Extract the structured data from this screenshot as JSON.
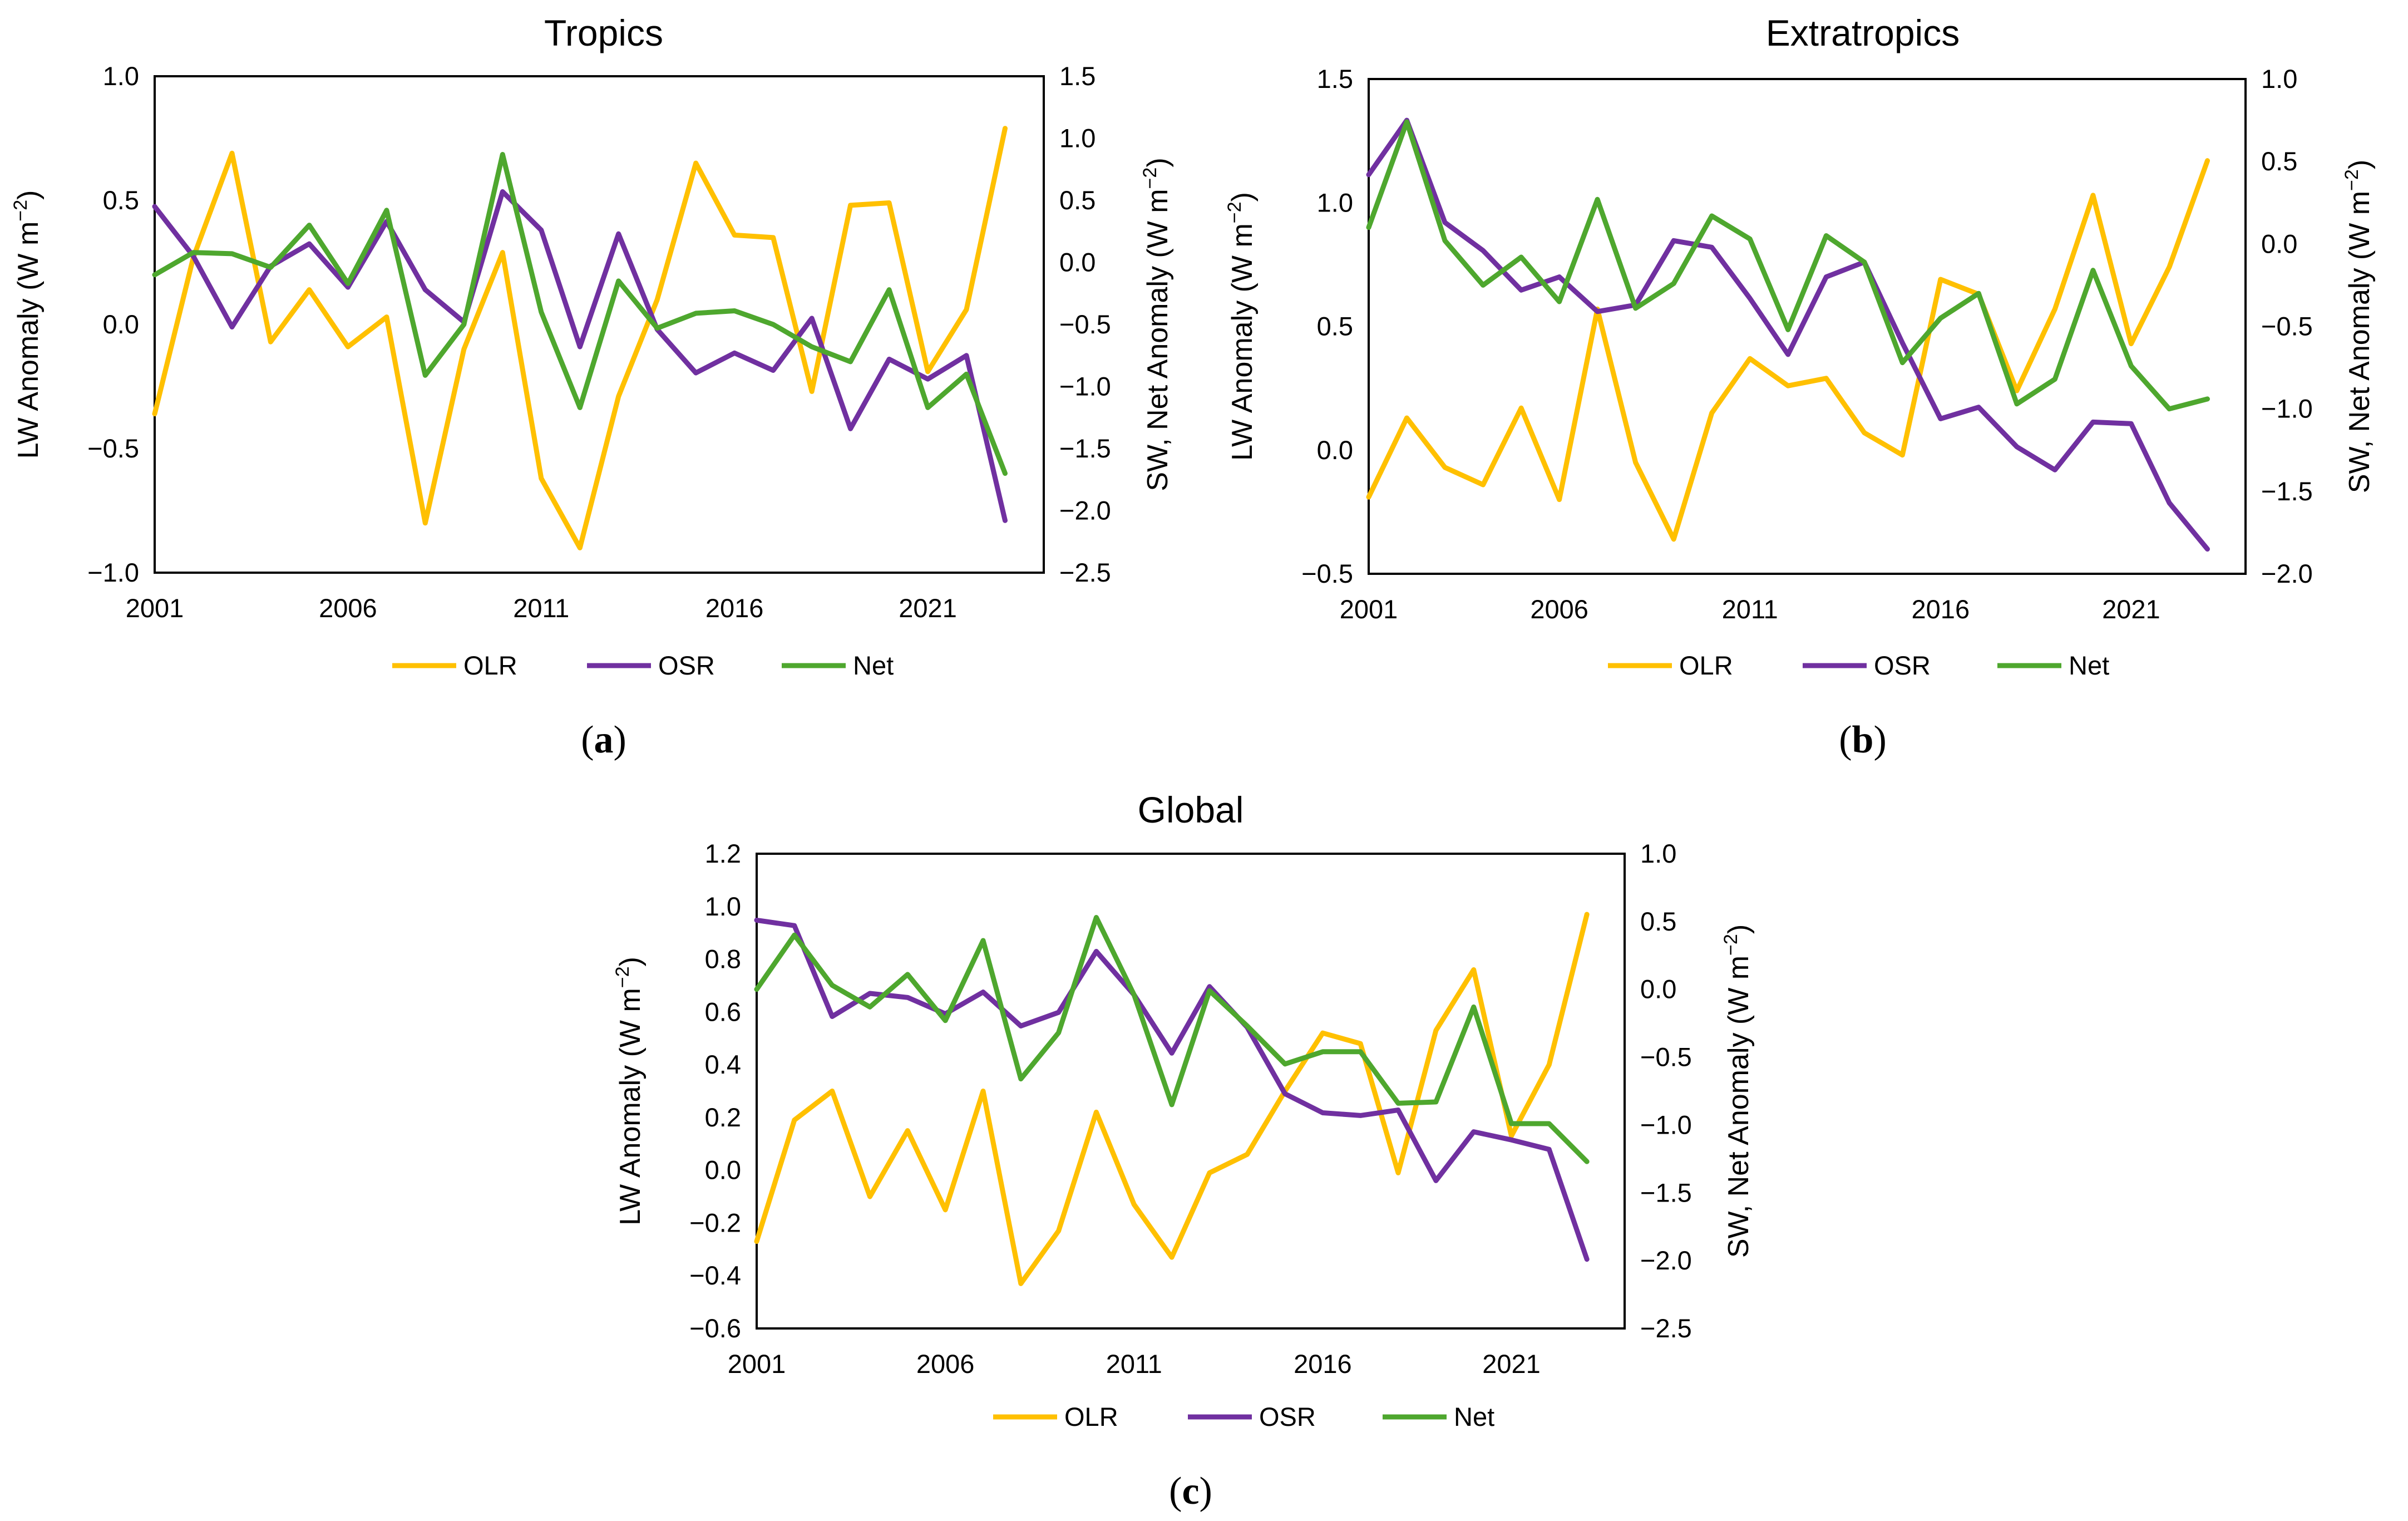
{
  "colors": {
    "OLR": "#FFC000",
    "OSR": "#7030A0",
    "Net": "#4EA72E"
  },
  "chart_data": [
    {
      "type": "line",
      "title": "Tropics",
      "caption_letter": "a",
      "ylabel_left": "LW Anomaly (W m",
      "ylabel_right": "SW, Net Anomaly (W m",
      "ylabel_sup": "−2",
      "ylabel_close": ")",
      "x": [
        2001,
        2002,
        2003,
        2004,
        2005,
        2006,
        2007,
        2008,
        2009,
        2010,
        2011,
        2012,
        2013,
        2014,
        2015,
        2016,
        2017,
        2018,
        2019,
        2020,
        2021,
        2022,
        2023
      ],
      "xticks": [
        "2001",
        "2006",
        "2011",
        "2016",
        "2021"
      ],
      "xlim": [
        2001,
        2024
      ],
      "ylim_left": [
        -1.0,
        1.0
      ],
      "yticks_left": [
        "−1.0",
        "−0.5",
        "0.0",
        "0.5",
        "1.0"
      ],
      "ylim_right": [
        -2.5,
        1.5
      ],
      "yticks_right": [
        "−2.5",
        "−2.0",
        "−1.5",
        "−1.0",
        "−0.5",
        "0.0",
        "0.5",
        "1.0",
        "1.5"
      ],
      "legend": [
        "OLR",
        "OSR",
        "Net"
      ],
      "series": [
        {
          "name": "OLR",
          "axis": "left",
          "values": [
            -0.36,
            0.27,
            0.69,
            -0.07,
            0.14,
            -0.09,
            0.03,
            -0.8,
            -0.1,
            0.29,
            -0.62,
            -0.9,
            -0.29,
            0.1,
            0.65,
            0.36,
            0.35,
            -0.27,
            0.48,
            0.49,
            -0.19,
            0.06,
            0.79
          ]
        },
        {
          "name": "OSR",
          "axis": "right",
          "values": [
            0.45,
            0.05,
            -0.52,
            -0.03,
            0.15,
            -0.2,
            0.33,
            -0.22,
            -0.48,
            0.57,
            0.26,
            -0.68,
            0.23,
            -0.54,
            -0.89,
            -0.73,
            -0.87,
            -0.45,
            -1.34,
            -0.78,
            -0.94,
            -0.75,
            -2.08
          ]
        },
        {
          "name": "Net",
          "axis": "right",
          "values": [
            -0.1,
            0.08,
            0.07,
            -0.04,
            0.3,
            -0.17,
            0.42,
            -0.91,
            -0.5,
            0.87,
            -0.4,
            -1.17,
            -0.15,
            -0.53,
            -0.41,
            -0.39,
            -0.5,
            -0.68,
            -0.8,
            -0.22,
            -1.17,
            -0.9,
            -1.7
          ]
        }
      ]
    },
    {
      "type": "line",
      "title": "Extratropics",
      "caption_letter": "b",
      "ylabel_left": "LW Anomaly (W m",
      "ylabel_right": "SW, Net Anomaly (W m",
      "ylabel_sup": "−2",
      "ylabel_close": ")",
      "x": [
        2001,
        2002,
        2003,
        2004,
        2005,
        2006,
        2007,
        2008,
        2009,
        2010,
        2011,
        2012,
        2013,
        2014,
        2015,
        2016,
        2017,
        2018,
        2019,
        2020,
        2021,
        2022,
        2023
      ],
      "xticks": [
        "2001",
        "2006",
        "2011",
        "2016",
        "2021"
      ],
      "xlim": [
        2001,
        2024
      ],
      "ylim_left": [
        -0.5,
        1.5
      ],
      "yticks_left": [
        "−0.5",
        "0.0",
        "0.5",
        "1.0",
        "1.5"
      ],
      "ylim_right": [
        -2.0,
        1.0
      ],
      "yticks_right": [
        "−2.0",
        "−1.5",
        "−1.0",
        "−0.5",
        "0.0",
        "0.5",
        "1.0"
      ],
      "legend": [
        "OLR",
        "OSR",
        "Net"
      ],
      "series": [
        {
          "name": "OLR",
          "axis": "left",
          "values": [
            -0.19,
            0.13,
            -0.07,
            -0.14,
            0.17,
            -0.2,
            0.57,
            -0.05,
            -0.36,
            0.15,
            0.37,
            0.26,
            0.29,
            0.07,
            -0.02,
            0.69,
            0.63,
            0.24,
            0.57,
            1.03,
            0.43,
            0.74,
            1.17
          ]
        },
        {
          "name": "OSR",
          "axis": "right",
          "values": [
            0.42,
            0.75,
            0.13,
            -0.04,
            -0.28,
            -0.2,
            -0.41,
            -0.37,
            0.02,
            -0.02,
            -0.33,
            -0.67,
            -0.2,
            -0.11,
            -0.6,
            -1.06,
            -0.99,
            -1.23,
            -1.37,
            -1.08,
            -1.09,
            -1.57,
            -1.85
          ]
        },
        {
          "name": "Net",
          "axis": "right",
          "values": [
            0.1,
            0.74,
            0.02,
            -0.25,
            -0.08,
            -0.35,
            0.27,
            -0.39,
            -0.24,
            0.17,
            0.03,
            -0.52,
            0.05,
            -0.11,
            -0.72,
            -0.45,
            -0.3,
            -0.97,
            -0.82,
            -0.16,
            -0.74,
            -1.0,
            -0.94
          ]
        }
      ]
    },
    {
      "type": "line",
      "title": "Global",
      "caption_letter": "c",
      "ylabel_left": "LW Anomaly (W m",
      "ylabel_right": "SW, Net Anomaly (W m",
      "ylabel_sup": "−2",
      "ylabel_close": ")",
      "x": [
        2001,
        2002,
        2003,
        2004,
        2005,
        2006,
        2007,
        2008,
        2009,
        2010,
        2011,
        2012,
        2013,
        2014,
        2015,
        2016,
        2017,
        2018,
        2019,
        2020,
        2021,
        2022,
        2023
      ],
      "xticks": [
        "2001",
        "2006",
        "2011",
        "2016",
        "2021"
      ],
      "xlim": [
        2001,
        2024
      ],
      "ylim_left": [
        -0.6,
        1.2
      ],
      "yticks_left": [
        "−0.6",
        "−0.4",
        "−0.2",
        "0.0",
        "0.2",
        "0.4",
        "0.6",
        "0.8",
        "1.0",
        "1.2"
      ],
      "ylim_right": [
        -2.5,
        1.0
      ],
      "yticks_right": [
        "−2.5",
        "−2.0",
        "−1.5",
        "−1.0",
        "−0.5",
        "0.0",
        "0.5",
        "1.0"
      ],
      "legend": [
        "OLR",
        "OSR",
        "Net"
      ],
      "series": [
        {
          "name": "OLR",
          "axis": "left",
          "values": [
            -0.27,
            0.19,
            0.3,
            -0.1,
            0.15,
            -0.15,
            0.3,
            -0.43,
            -0.23,
            0.22,
            -0.13,
            -0.33,
            -0.01,
            0.06,
            0.3,
            0.52,
            0.48,
            -0.01,
            0.53,
            0.76,
            0.13,
            0.4,
            0.97
          ]
        },
        {
          "name": "OSR",
          "axis": "right",
          "values": [
            0.51,
            0.47,
            -0.2,
            -0.03,
            -0.06,
            -0.18,
            -0.02,
            -0.27,
            -0.17,
            0.28,
            -0.04,
            -0.47,
            0.02,
            -0.28,
            -0.77,
            -0.91,
            -0.93,
            -0.89,
            -1.41,
            -1.05,
            -1.11,
            -1.18,
            -1.99
          ]
        },
        {
          "name": "Net",
          "axis": "right",
          "values": [
            0.0,
            0.4,
            0.03,
            -0.13,
            0.11,
            -0.23,
            0.36,
            -0.66,
            -0.32,
            0.53,
            -0.04,
            -0.85,
            -0.01,
            -0.27,
            -0.55,
            -0.46,
            -0.46,
            -0.84,
            -0.83,
            -0.13,
            -0.99,
            -0.99,
            -1.27
          ]
        }
      ]
    }
  ]
}
